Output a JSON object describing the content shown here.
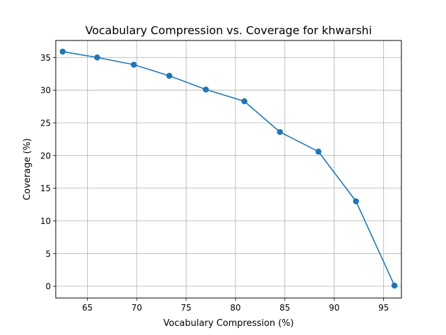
{
  "chart_data": {
    "type": "line",
    "title": "Vocabulary Compression vs. Coverage for khwarshi",
    "xlabel": "Vocabulary Compression (%)",
    "ylabel": "Coverage (%)",
    "xlim": [
      61.8,
      96.8
    ],
    "ylim": [
      -1.8,
      37.6
    ],
    "xticks": [
      65,
      70,
      75,
      80,
      85,
      90,
      95
    ],
    "yticks": [
      0,
      5,
      10,
      15,
      20,
      25,
      30,
      35
    ],
    "grid": true,
    "series": [
      {
        "color": "#1f77b4",
        "marker": "circle",
        "x": [
          62.5,
          66.0,
          69.7,
          73.3,
          77.0,
          80.9,
          84.5,
          88.4,
          92.2,
          96.1
        ],
        "y": [
          35.9,
          35.0,
          33.9,
          32.2,
          30.1,
          28.3,
          23.6,
          20.6,
          13.0,
          0.1
        ]
      }
    ]
  }
}
